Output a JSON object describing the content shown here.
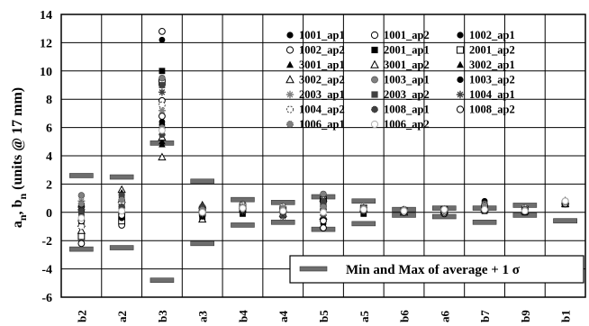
{
  "chart_data": {
    "type": "scatter",
    "ylabel": "a_n, b_n (units @ 17 mm)",
    "ylabel_main": "a",
    "ylabel_sub1": "n",
    "ylabel_mid": ", b",
    "ylabel_sub2": "n",
    "ylabel_tail": " (units @ 17 mm)",
    "ylim": [
      -6,
      14
    ],
    "yticks": [
      -6,
      -4,
      -2,
      0,
      2,
      4,
      6,
      8,
      10,
      12,
      14
    ],
    "grid": true,
    "categories": [
      "b2",
      "a2",
      "b3",
      "a3",
      "b4",
      "a4",
      "b5",
      "a5",
      "b6",
      "a6",
      "b7",
      "b9",
      "b1"
    ],
    "legend_position": "top-right",
    "series": [
      {
        "name": "1001_ap1",
        "marker": "circle-filled",
        "values": [
          -0.3,
          0.2,
          12.2,
          0.3,
          0.5,
          0.2,
          -0.8,
          0.2,
          0.1,
          0.1,
          0.3,
          0.2,
          0.7
        ]
      },
      {
        "name": "1001_ap2",
        "marker": "circle-open",
        "values": [
          0.4,
          -0.3,
          12.8,
          0.1,
          0.2,
          0.3,
          0.2,
          0.3,
          0.0,
          -0.1,
          0.4,
          0.1,
          0.6
        ]
      },
      {
        "name": "1002_ap1",
        "marker": "circle-filled",
        "values": [
          -0.8,
          0.5,
          6.4,
          0.4,
          0.6,
          -0.1,
          0.6,
          0.1,
          0.2,
          0.2,
          0.8,
          0.3,
          0.7
        ]
      },
      {
        "name": "1002_ap2",
        "marker": "circle-open",
        "values": [
          -2.2,
          -0.9,
          7.9,
          -0.2,
          0.3,
          0.1,
          -1.1,
          0.2,
          0.0,
          0.1,
          0.2,
          0.2,
          0.8
        ]
      },
      {
        "name": "2001_ap1",
        "marker": "square-filled",
        "values": [
          -0.5,
          0.0,
          10.0,
          -0.4,
          -0.1,
          0.0,
          0.4,
          -0.1,
          0.1,
          0.0,
          0.1,
          0.0,
          0.7
        ]
      },
      {
        "name": "2001_ap2",
        "marker": "square-open",
        "values": [
          -1.7,
          -0.6,
          9.2,
          0.2,
          0.4,
          0.2,
          0.9,
          0.3,
          0.1,
          0.2,
          0.3,
          0.2,
          0.6
        ]
      },
      {
        "name": "3001_ap1",
        "marker": "triangle-filled",
        "values": [
          0.3,
          1.0,
          5.0,
          0.2,
          0.4,
          -0.2,
          0.3,
          0.4,
          0.2,
          0.1,
          0.3,
          0.1,
          0.7
        ]
      },
      {
        "name": "3001_ap2",
        "marker": "triangle-open",
        "values": [
          -0.8,
          1.6,
          3.9,
          0.5,
          0.5,
          0.3,
          1.0,
          0.2,
          0.0,
          0.2,
          0.2,
          0.1,
          0.6
        ]
      },
      {
        "name": "3002_ap1",
        "marker": "triangle-filled",
        "values": [
          0.5,
          1.4,
          4.8,
          0.3,
          0.1,
          0.4,
          0.7,
          0.2,
          0.1,
          0.0,
          0.2,
          0.2,
          0.7
        ]
      },
      {
        "name": "3002_ap2",
        "marker": "triangle-open",
        "values": [
          -1.3,
          0.9,
          5.3,
          -0.5,
          0.2,
          -0.1,
          -0.3,
          0.3,
          0.0,
          0.1,
          0.3,
          0.1,
          0.8
        ]
      },
      {
        "name": "1003_ap1",
        "marker": "circle-gray",
        "values": [
          1.2,
          0.6,
          9.5,
          0.1,
          0.6,
          0.2,
          1.3,
          0.1,
          0.1,
          0.1,
          0.6,
          0.2,
          0.7
        ]
      },
      {
        "name": "1003_ap2",
        "marker": "circle-filled",
        "values": [
          -0.2,
          -0.4,
          6.2,
          -0.3,
          0.0,
          0.1,
          -0.5,
          0.2,
          0.1,
          0.1,
          0.2,
          0.0,
          0.6
        ]
      },
      {
        "name": "2003_ap1",
        "marker": "star-gray",
        "values": [
          0.8,
          0.3,
          7.2,
          0.2,
          0.3,
          0.3,
          0.5,
          0.4,
          0.2,
          0.2,
          0.4,
          0.3,
          0.8
        ]
      },
      {
        "name": "2003_ap2",
        "marker": "square-gray",
        "values": [
          -0.1,
          1.2,
          9.0,
          0.0,
          0.4,
          0.1,
          0.2,
          0.2,
          0.0,
          0.0,
          0.3,
          0.1,
          0.7
        ]
      },
      {
        "name": "1004_ap1",
        "marker": "star-dark",
        "values": [
          0.2,
          -0.1,
          8.5,
          -0.1,
          0.1,
          -0.3,
          -0.2,
          0.1,
          0.1,
          0.1,
          0.5,
          0.2,
          0.6
        ]
      },
      {
        "name": "1004_ap2",
        "marker": "circle-dashed",
        "values": [
          -1.0,
          0.7,
          7.6,
          0.3,
          0.5,
          0.4,
          0.1,
          0.3,
          0.2,
          0.1,
          0.2,
          0.3,
          0.7
        ]
      },
      {
        "name": "1008_ap1",
        "marker": "hex-dark",
        "values": [
          0.1,
          0.4,
          5.5,
          0.4,
          0.3,
          0.0,
          0.8,
          0.1,
          0.1,
          0.1,
          0.3,
          0.1,
          0.8
        ]
      },
      {
        "name": "1008_ap2",
        "marker": "circle-open",
        "values": [
          -0.6,
          -0.2,
          6.8,
          0.1,
          0.2,
          0.2,
          -0.6,
          0.2,
          0.0,
          0.0,
          0.4,
          0.2,
          0.6
        ]
      },
      {
        "name": "1006_ap1",
        "marker": "hex-gray",
        "values": [
          0.6,
          0.9,
          6.0,
          0.2,
          0.4,
          0.3,
          0.4,
          0.3,
          0.2,
          0.1,
          0.5,
          0.2,
          0.7
        ]
      },
      {
        "name": "1006_ap2",
        "marker": "circle-light",
        "values": [
          -0.4,
          0.1,
          5.8,
          0.0,
          0.3,
          0.1,
          0.0,
          0.2,
          0.1,
          0.2,
          0.2,
          0.1,
          0.8
        ]
      }
    ],
    "min_max_bars": {
      "name": "Min and Max of average + 1 σ",
      "min": [
        -2.6,
        -2.5,
        -4.8,
        -2.2,
        -0.9,
        -0.7,
        -1.2,
        -0.8,
        -0.2,
        -0.3,
        -0.7,
        -0.2,
        -0.6
      ],
      "max": [
        2.6,
        2.5,
        4.9,
        2.2,
        0.9,
        0.7,
        1.1,
        0.8,
        0.2,
        0.3,
        0.3,
        0.5,
        -0.6
      ]
    },
    "colors": {
      "black": "#000000",
      "dark_gray": "#404040",
      "mid_gray": "#808080",
      "light_gray": "#b0b0b0"
    }
  }
}
